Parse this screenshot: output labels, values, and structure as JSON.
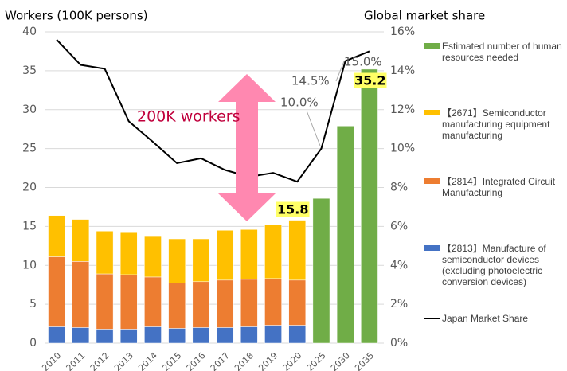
{
  "chart_data": {
    "type": "bar",
    "y_title": "Workers (100K persons)",
    "y2_title": "Global market share",
    "categories": [
      "2010",
      "2011",
      "2012",
      "2013",
      "2014",
      "2015",
      "2016",
      "2017",
      "2018",
      "2019",
      "2020",
      "2025",
      "2030",
      "2035"
    ],
    "series": [
      {
        "name": "【2813】Manufacture of semiconductor devices (excluding photoelectric conversion devices)",
        "color": "#4472c4",
        "values": [
          2.1,
          2.0,
          1.8,
          1.8,
          2.1,
          1.9,
          2.0,
          2.0,
          2.1,
          2.3,
          2.3,
          null,
          null,
          null
        ]
      },
      {
        "name": "【2814】Integrated Circuit Manufacturing",
        "color": "#ed7d31",
        "values": [
          9.0,
          8.5,
          7.1,
          7.0,
          6.4,
          5.8,
          5.9,
          6.1,
          6.1,
          6.0,
          5.8,
          null,
          null,
          null
        ]
      },
      {
        "name": "【2671】Semiconductor manufacturing equipment manufacturing",
        "color": "#ffc000",
        "values": [
          5.3,
          5.4,
          5.5,
          5.4,
          5.2,
          5.7,
          5.5,
          6.4,
          6.4,
          6.9,
          7.7,
          null,
          null,
          null
        ]
      },
      {
        "name": "Estimated number of human resources needed",
        "color": "#70ad47",
        "values": [
          null,
          null,
          null,
          null,
          null,
          null,
          null,
          null,
          null,
          null,
          null,
          18.6,
          27.9,
          35.2
        ]
      },
      {
        "name": "Japan Market Share",
        "type": "line",
        "axis": "y2",
        "color": "#000000",
        "values": [
          15.6,
          14.3,
          14.1,
          11.4,
          10.35,
          9.25,
          9.5,
          8.9,
          8.55,
          8.75,
          8.3,
          10.0,
          14.5,
          15.0
        ]
      }
    ],
    "annotations": [
      "200K workers",
      "10.0%",
      "14.5%",
      "15.0%",
      "15.8",
      "35.2"
    ],
    "ylim": [
      0,
      40
    ],
    "yticks": [
      0,
      5,
      10,
      15,
      20,
      25,
      30,
      35,
      40
    ],
    "y2lim": [
      0,
      16
    ],
    "y2ticks": [
      {
        "value": 0,
        "label": "0%"
      },
      {
        "value": 2,
        "label": "2%"
      },
      {
        "value": 4,
        "label": "4%"
      },
      {
        "value": 6,
        "label": "6%"
      },
      {
        "value": 8,
        "label": "8%"
      },
      {
        "value": 10,
        "label": "10%"
      },
      {
        "value": 12,
        "label": "12%"
      },
      {
        "value": 14,
        "label": "14%"
      },
      {
        "value": 16,
        "label": "16%"
      }
    ],
    "grid": true,
    "legend": "right"
  }
}
